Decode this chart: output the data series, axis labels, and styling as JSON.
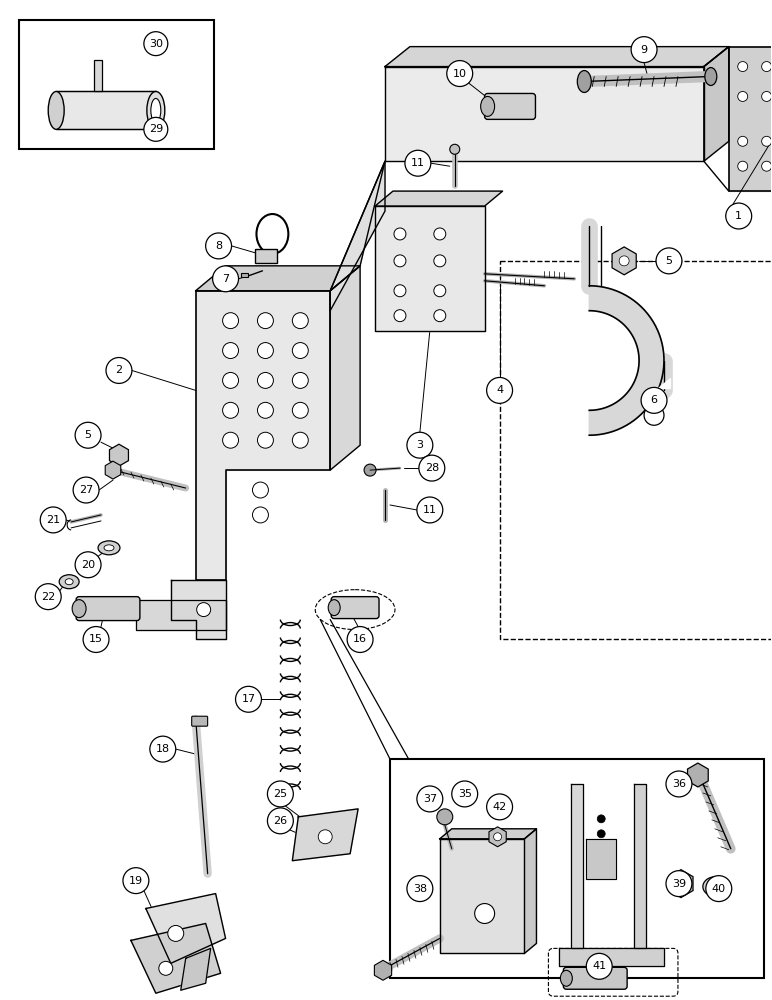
{
  "bg": "#ffffff",
  "lc": "#000000",
  "fw": 7.72,
  "fh": 10.0,
  "dpi": 100
}
